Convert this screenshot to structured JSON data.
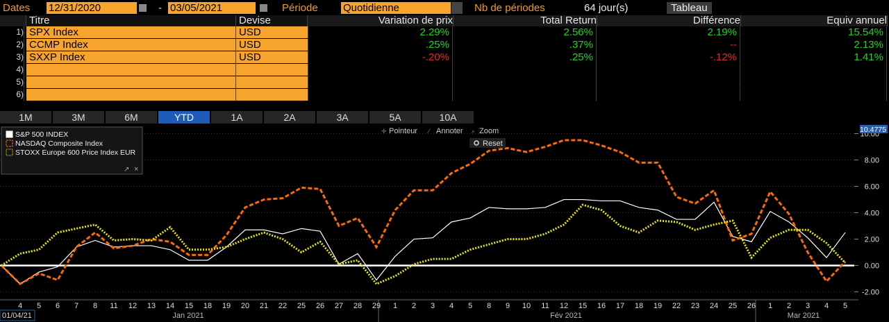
{
  "toolbar": {
    "dates_label": "Dates",
    "start": "12/31/2020",
    "sep": "-",
    "end": "03/05/2021",
    "period_label": "Période",
    "period": "Quotidienne",
    "count_label": "Nb de périodes",
    "count": "64 jour(s)",
    "button": "Tableau"
  },
  "table": {
    "headers": [
      "Titre",
      "Devise",
      "Variation de prix",
      "Total Return",
      "Différence",
      "Equiv annuel"
    ],
    "rows": [
      {
        "num": "1)",
        "title": "SPX Index",
        "currency": "USD",
        "cells": [
          "2.29%",
          "2.56%",
          "2.19%",
          "15.54%"
        ],
        "colors": [
          "#22d422",
          "#22d422",
          "#22d422",
          "#22d422"
        ]
      },
      {
        "num": "2)",
        "title": "CCMP Index",
        "currency": "USD",
        "cells": [
          ".25%",
          ".37%",
          "--",
          "2.13%"
        ],
        "colors": [
          "#22d422",
          "#22d422",
          "#e8262e",
          "#22d422"
        ]
      },
      {
        "num": "3)",
        "title": "SXXP Index",
        "currency": "USD",
        "cells": [
          "-.20%",
          ".25%",
          "-.12%",
          "1.41%"
        ],
        "colors": [
          "#e8262e",
          "#22d422",
          "#e8262e",
          "#22d422"
        ]
      },
      {
        "num": "4)"
      },
      {
        "num": "5)"
      },
      {
        "num": "6)"
      }
    ]
  },
  "tabs": [
    "1M",
    "3M",
    "6M",
    "YTD",
    "1A",
    "2A",
    "3A",
    "5A",
    "10A"
  ],
  "selected_tab": 3,
  "tools": [
    "Pointeur",
    "Annoter",
    "Zoom",
    "Reset"
  ],
  "chart_data": {
    "type": "line",
    "categories": [
      null,
      "4",
      "5",
      "6",
      "7",
      "8",
      "11",
      "12",
      "13",
      "14",
      "15",
      "18",
      "19",
      "20",
      "21",
      "22",
      "25",
      "26",
      "27",
      "28",
      "29",
      "1",
      "2",
      "3",
      "4",
      "5",
      "8",
      "9",
      "10",
      "11",
      "12",
      "15",
      "16",
      "17",
      "18",
      "19",
      "22",
      "23",
      "24",
      "25",
      "26",
      "1",
      "2",
      "3",
      "4",
      "5"
    ],
    "months": [
      "Jan 2021",
      "Fév 2021",
      "Mar 2021"
    ],
    "start_label": "01/04/21",
    "axis_marker": "10.4775",
    "series": [
      {
        "name": "S&P 500 INDEX",
        "color": "#ffffff",
        "dash": "solid",
        "values": [
          0,
          -1.4,
          -0.5,
          -0.1,
          1.4,
          1.9,
          1.4,
          1.5,
          1.5,
          1.2,
          0.4,
          0.4,
          1.4,
          2.7,
          2.7,
          2.4,
          2.8,
          2.6,
          0.1,
          0.9,
          -1.1,
          0.7,
          2.0,
          2.1,
          3.3,
          3.6,
          4.4,
          4.3,
          4.3,
          4.4,
          5.0,
          5.0,
          4.9,
          4.9,
          4.4,
          4.2,
          3.5,
          3.5,
          4.8,
          2.2,
          1.8,
          4.1,
          3.3,
          2.1,
          0.6,
          2.5
        ]
      },
      {
        "name": "NASDAQ Composite Index",
        "color": "#ff6a00",
        "dash": "dashed",
        "values": [
          0,
          -1.4,
          -0.6,
          -1.1,
          1.4,
          2.5,
          1.3,
          1.5,
          2.0,
          1.8,
          0.8,
          0.8,
          2.3,
          4.4,
          5.0,
          5.1,
          5.9,
          5.8,
          3.0,
          3.6,
          1.4,
          4.2,
          5.7,
          5.7,
          7.0,
          7.7,
          8.7,
          8.9,
          8.6,
          9.0,
          9.5,
          9.5,
          9.1,
          8.6,
          7.8,
          7.8,
          5.2,
          4.7,
          5.7,
          1.9,
          2.4,
          5.6,
          3.9,
          1.0,
          -1.2,
          0.3
        ]
      },
      {
        "name": "STOXX Europe 600 Price Index EUR",
        "color": "#e8e800",
        "dash": "dotted",
        "values": [
          0,
          0.9,
          1.2,
          2.5,
          2.8,
          3.1,
          1.9,
          2.0,
          1.9,
          2.9,
          1.2,
          1.2,
          1.4,
          2.0,
          2.5,
          2.0,
          1.0,
          1.8,
          0.1,
          0.4,
          -1.4,
          -0.8,
          0.1,
          0.5,
          0.5,
          1.2,
          1.6,
          2.0,
          2.0,
          2.4,
          3.1,
          4.6,
          4.2,
          3.0,
          2.5,
          3.4,
          3.3,
          2.7,
          3.1,
          3.4,
          0.6,
          2.1,
          2.7,
          2.7,
          1.7,
          0.2
        ]
      }
    ],
    "ylim": [
      -2.6,
      10.5
    ],
    "yticks": [
      {
        "value": -2,
        "label": "-2.00"
      },
      {
        "value": 0,
        "label": "0.00"
      },
      {
        "value": 2,
        "label": "2.00"
      },
      {
        "value": 4,
        "label": "4.00"
      },
      {
        "value": 6,
        "label": "6.00"
      },
      {
        "value": 8,
        "label": "8.00"
      },
      {
        "value": 10,
        "label": "10.00"
      }
    ],
    "grid": true,
    "zero_line": true
  }
}
